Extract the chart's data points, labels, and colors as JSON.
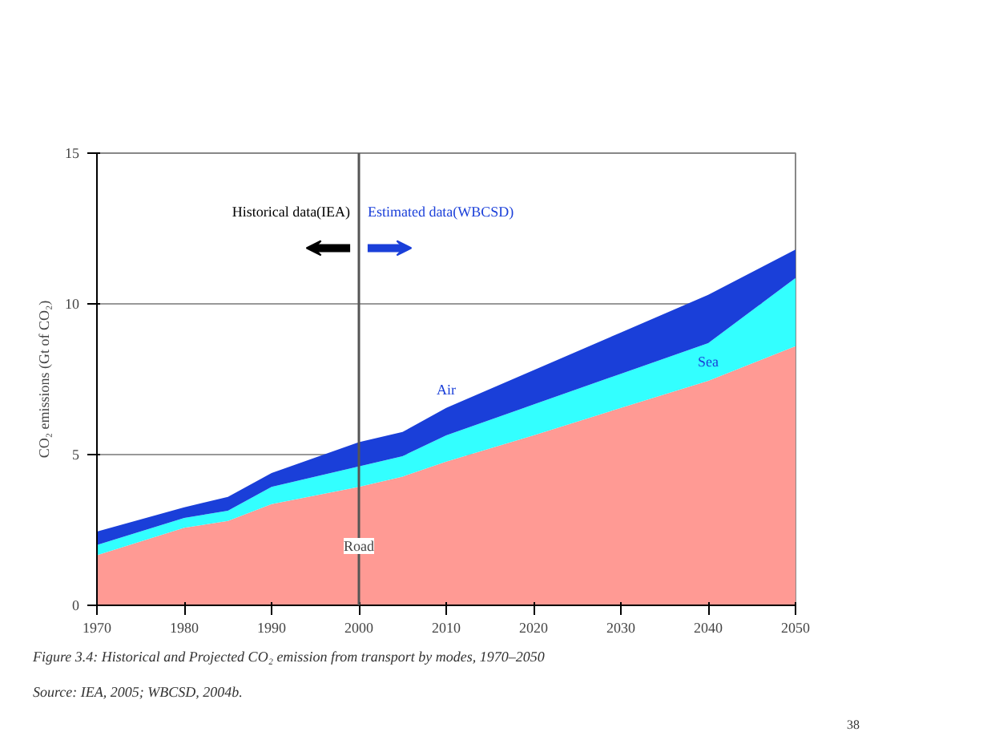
{
  "chart_data": {
    "type": "area",
    "stacked": true,
    "ylabel": "CO₂ emissions (Gt of CO₂)",
    "x": [
      1970,
      1980,
      1985,
      1990,
      2000,
      2005,
      2010,
      2020,
      2030,
      2040,
      2050
    ],
    "series": [
      {
        "name": "Road",
        "color": "#ff9a94",
        "values": [
          1.66,
          2.57,
          2.8,
          3.36,
          3.93,
          4.27,
          4.77,
          5.64,
          6.55,
          7.45,
          8.6
        ]
      },
      {
        "name": "Sea",
        "color": "#33ffff",
        "values": [
          0.34,
          0.33,
          0.34,
          0.57,
          0.68,
          0.68,
          0.87,
          1.02,
          1.13,
          1.25,
          2.26
        ]
      },
      {
        "name": "Air",
        "color": "#1a3fd9",
        "values": [
          0.45,
          0.35,
          0.46,
          0.46,
          0.8,
          0.8,
          0.91,
          1.14,
          1.37,
          1.6,
          0.94
        ]
      }
    ],
    "xlim": [
      1970,
      2050
    ],
    "ylim": [
      0,
      15
    ],
    "xticks": [
      1970,
      1980,
      1990,
      2000,
      2010,
      2020,
      2030,
      2040,
      2050
    ],
    "yticks": [
      0,
      5,
      10,
      15
    ],
    "grid": "y",
    "ref_lines": [
      {
        "axis": "x",
        "value": 2000,
        "color": "#555555"
      }
    ],
    "annotations": [
      "Historical data(IEA)",
      "Estimated data(WBCSD)",
      "Figure 3.4: Historical and Projected CO₂ emission from transport by modes, 1970–2050",
      "Source: IEA, 2005; WBCSD, 2004b.",
      "38"
    ]
  }
}
